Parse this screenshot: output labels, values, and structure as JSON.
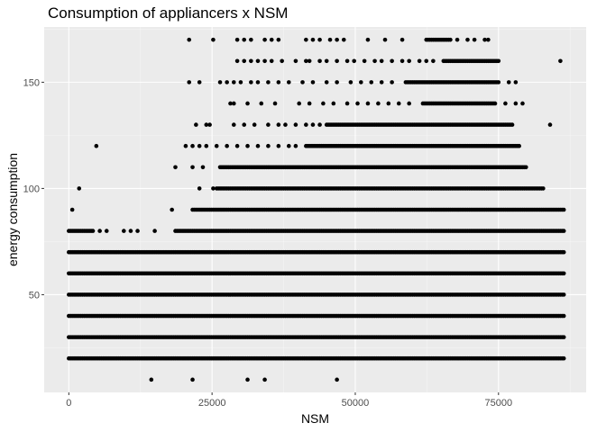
{
  "chart_data": {
    "type": "scatter",
    "title": "Consumption of appliancers x NSM",
    "xlabel": "NSM",
    "ylabel": "energy consumption",
    "xlim": [
      -4300,
      90300
    ],
    "ylim": [
      4,
      176
    ],
    "x_ticks": [
      0,
      25000,
      50000,
      75000
    ],
    "x_tick_labels": [
      "0",
      "25000",
      "50000",
      "75000"
    ],
    "y_ticks": [
      50,
      100,
      150
    ],
    "y_tick_labels": [
      "50",
      "100",
      "150"
    ],
    "grid": true,
    "legend": "none",
    "colors": {
      "panel": "#ebebeb",
      "grid_major": "#ffffff",
      "grid_minor": "#f5f5f5",
      "point": "#000000"
    },
    "series": [
      {
        "y": 10,
        "ranges": [],
        "points": [
          14400,
          21600,
          31200,
          34200,
          46800
        ]
      },
      {
        "y": 20,
        "ranges": [
          [
            0,
            86400
          ]
        ],
        "points": []
      },
      {
        "y": 30,
        "ranges": [
          [
            0,
            86400
          ]
        ],
        "points": []
      },
      {
        "y": 40,
        "ranges": [
          [
            0,
            86400
          ]
        ],
        "points": []
      },
      {
        "y": 50,
        "ranges": [
          [
            0,
            86400
          ]
        ],
        "points": []
      },
      {
        "y": 60,
        "ranges": [
          [
            0,
            86400
          ]
        ],
        "points": []
      },
      {
        "y": 70,
        "ranges": [
          [
            0,
            86400
          ]
        ],
        "points": []
      },
      {
        "y": 80,
        "ranges": [
          [
            0,
            4200
          ],
          [
            18600,
            86400
          ]
        ],
        "points": [
          5400,
          6600,
          9600,
          10800,
          12000,
          15000
        ]
      },
      {
        "y": 90,
        "ranges": [
          [
            21600,
            86400
          ]
        ],
        "points": [
          600,
          18000
        ]
      },
      {
        "y": 100,
        "ranges": [
          [
            25800,
            82800
          ]
        ],
        "points": [
          1800,
          22800,
          25200
        ]
      },
      {
        "y": 110,
        "ranges": [
          [
            26400,
            79800
          ]
        ],
        "points": [
          18600,
          21600,
          23400
        ]
      },
      {
        "y": 120,
        "ranges": [
          [
            41400,
            78600
          ]
        ],
        "points": [
          4800,
          20400,
          21600,
          22800,
          24000,
          25800,
          27600,
          29400,
          31200,
          33000,
          34800,
          36600,
          38400,
          39600
        ]
      },
      {
        "y": 130,
        "ranges": [
          [
            45000,
            77400
          ]
        ],
        "points": [
          22200,
          24000,
          24600,
          28800,
          30600,
          32400,
          34800,
          36600,
          37800,
          39600,
          41400,
          42600,
          43800,
          84000
        ]
      },
      {
        "y": 140,
        "ranges": [
          [
            61800,
            74400
          ]
        ],
        "points": [
          28200,
          28800,
          31200,
          33600,
          36000,
          40200,
          42000,
          44400,
          46200,
          48600,
          50400,
          52200,
          54000,
          55800,
          57600,
          59400,
          76200,
          78000,
          79200
        ]
      },
      {
        "y": 150,
        "ranges": [
          [
            58800,
            75000
          ]
        ],
        "points": [
          21000,
          22800,
          26400,
          27600,
          28800,
          30000,
          31800,
          33000,
          34800,
          36600,
          38400,
          40800,
          42600,
          45000,
          46800,
          49200,
          51000,
          52800,
          54600,
          56400,
          76800,
          78000
        ]
      },
      {
        "y": 160,
        "ranges": [
          [
            65400,
            75000
          ]
        ],
        "points": [
          29400,
          30600,
          31800,
          33000,
          34200,
          35400,
          37200,
          39600,
          41400,
          42000,
          43800,
          45000,
          46800,
          48600,
          49800,
          51600,
          53400,
          54600,
          56400,
          58200,
          59400,
          61200,
          62400,
          63600,
          85800
        ]
      },
      {
        "y": 170,
        "ranges": [
          [
            62400,
            66600
          ]
        ],
        "points": [
          21000,
          25200,
          29400,
          30600,
          31800,
          34200,
          35400,
          36600,
          41400,
          42600,
          43800,
          45600,
          46800,
          48000,
          52200,
          55200,
          58200,
          67800,
          69600,
          70800,
          72600,
          73200
        ]
      }
    ]
  }
}
